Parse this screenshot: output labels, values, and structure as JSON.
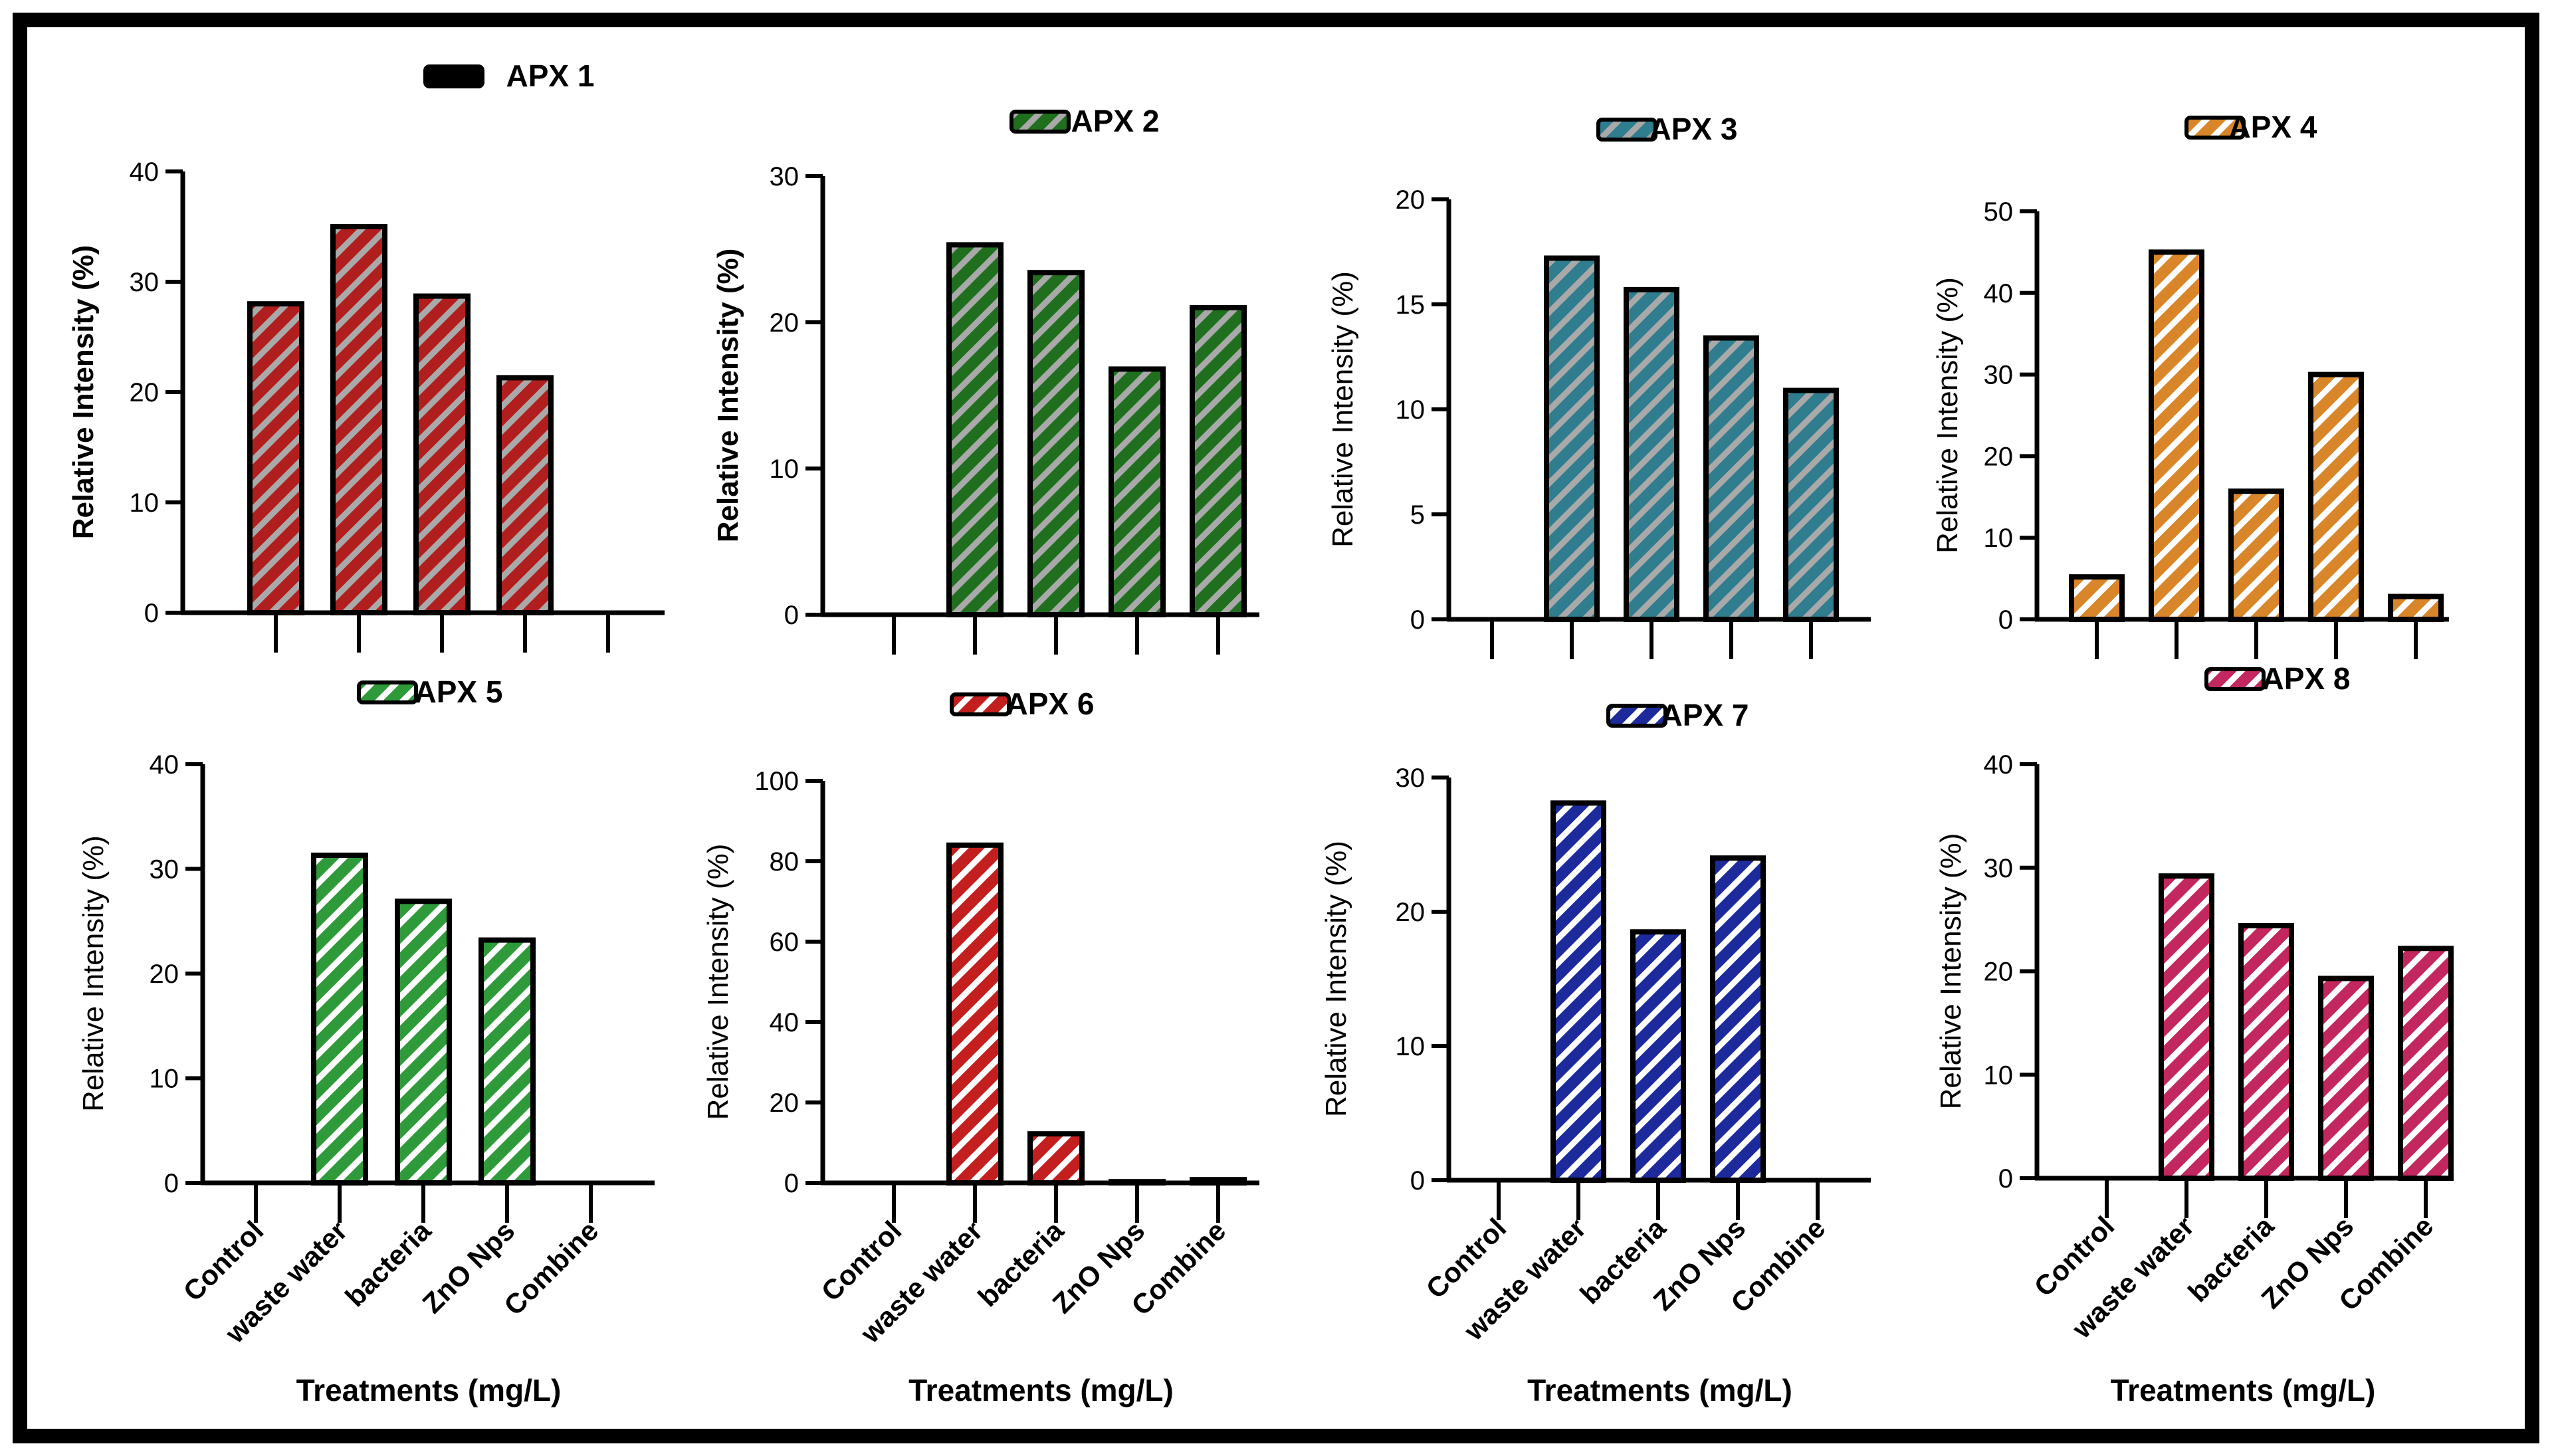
{
  "figure": {
    "common_x_label": "Treatments (mg/L)",
    "common_categories": [
      "Control",
      "waste water",
      "bacteria",
      "ZnO Nps",
      "Combine"
    ],
    "colors": {
      "frame": "#000000",
      "stripe": "#ffffff",
      "apx1_fill": "#b01e1e",
      "apx1_stripe": "#a9a9a9"
    }
  },
  "chart_data": [
    {
      "type": "bar",
      "title": "APX 1",
      "legend_swatch": "solid-black",
      "xlabel": "",
      "ylabel": "Relative Intensity (%)",
      "categories": [
        "Control",
        "waste water",
        "bacteria",
        "ZnO Nps",
        "Combine"
      ],
      "values": [
        28,
        35,
        28.7,
        21.3,
        0
      ],
      "yticks": [
        0,
        10,
        20,
        30,
        40
      ],
      "ylim": [
        0,
        40
      ],
      "fill": "#b01e1e",
      "stripe": "#a9a9a9",
      "show_xticklabels": false
    },
    {
      "type": "bar",
      "title": "APX 2",
      "xlabel": "",
      "ylabel": "Relative Intensity (%)",
      "categories": [
        "Control",
        "waste water",
        "bacteria",
        "ZnO Nps",
        "Combine"
      ],
      "values": [
        0,
        25.3,
        23.4,
        16.8,
        21
      ],
      "yticks": [
        0,
        10,
        20,
        30
      ],
      "ylim": [
        0,
        30
      ],
      "fill": "#1f6f1f",
      "stripe": "#a9a9a9",
      "show_xticklabels": false
    },
    {
      "type": "bar",
      "title": "APX 3",
      "xlabel": "",
      "ylabel": "Relative Intensity (%)",
      "categories": [
        "Control",
        "waste water",
        "bacteria",
        "ZnO Nps",
        "Combine"
      ],
      "values": [
        0,
        17.2,
        15.7,
        13.4,
        10.9
      ],
      "yticks": [
        0,
        5,
        10,
        15,
        20
      ],
      "ylim": [
        0,
        20
      ],
      "fill": "#2f7d8f",
      "stripe": "#a9a9a9",
      "show_xticklabels": false
    },
    {
      "type": "bar",
      "title": "APX 4",
      "xlabel": "",
      "ylabel": "Relative Intensity (%)",
      "categories": [
        "Control",
        "waste water",
        "bacteria",
        "ZnO Nps",
        "Combine"
      ],
      "values": [
        5.2,
        45,
        15.7,
        30,
        2.8
      ],
      "yticks": [
        0,
        10,
        20,
        30,
        40,
        50
      ],
      "ylim": [
        0,
        50
      ],
      "fill": "#d9862a",
      "stripe": "#ffffff",
      "show_xticklabels": false
    },
    {
      "type": "bar",
      "title": "APX 5",
      "xlabel": "Treatments (mg/L)",
      "ylabel": "Relative Intensity (%)",
      "categories": [
        "Control",
        "waste water",
        "bacteria",
        "ZnO Nps",
        "Combine"
      ],
      "values": [
        0,
        31.3,
        26.9,
        23.2,
        0
      ],
      "yticks": [
        0,
        10,
        20,
        30,
        40
      ],
      "ylim": [
        0,
        40
      ],
      "fill": "#2f9a3a",
      "stripe": "#ffffff",
      "show_xticklabels": true
    },
    {
      "type": "bar",
      "title": "APX 6",
      "xlabel": "Treatments (mg/L)",
      "ylabel": "Relative Intensity (%)",
      "categories": [
        "Control",
        "waste water",
        "bacteria",
        "ZnO Nps",
        "Combine"
      ],
      "values": [
        0,
        84,
        12.2,
        0.3,
        0.8
      ],
      "yticks": [
        0,
        20,
        40,
        60,
        80,
        100
      ],
      "ylim": [
        0,
        100
      ],
      "fill": "#c41f1f",
      "stripe": "#ffffff",
      "show_xticklabels": true
    },
    {
      "type": "bar",
      "title": "APX 7",
      "xlabel": "Treatments (mg/L)",
      "ylabel": "Relative Intensity (%)",
      "categories": [
        "Control",
        "waste water",
        "bacteria",
        "ZnO Nps",
        "Combine"
      ],
      "values": [
        0,
        28.1,
        18.5,
        24,
        0
      ],
      "yticks": [
        0,
        10,
        20,
        30
      ],
      "ylim": [
        0,
        30
      ],
      "fill": "#1c2a9c",
      "stripe": "#ffffff",
      "show_xticklabels": true
    },
    {
      "type": "bar",
      "title": "APX 8",
      "xlabel": "Treatments (mg/L)",
      "ylabel": "Relative Intensity (%)",
      "categories": [
        "Control",
        "waste water",
        "bacteria",
        "ZnO Nps",
        "Combine"
      ],
      "values": [
        0,
        29.2,
        24.4,
        19.3,
        22.2
      ],
      "yticks": [
        0,
        10,
        20,
        30,
        40
      ],
      "ylim": [
        0,
        40
      ],
      "fill": "#c2275f",
      "stripe": "#ffffff",
      "show_xticklabels": true
    }
  ]
}
